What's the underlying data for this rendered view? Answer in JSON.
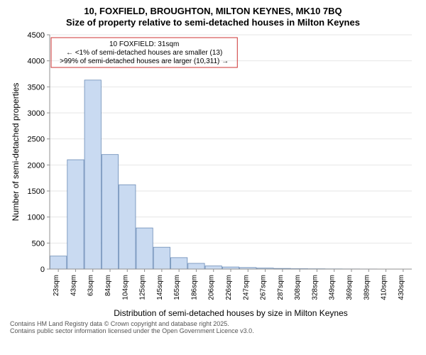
{
  "title": {
    "line1": "10, FOXFIELD, BROUGHTON, MILTON KEYNES, MK10 7BQ",
    "line2": "Size of property relative to semi-detached houses in Milton Keynes"
  },
  "chart": {
    "type": "histogram",
    "bar_fill": "#c9daf1",
    "bar_stroke": "#6a8bb6",
    "background_color": "#ffffff",
    "grid_color": "#e6e6e6",
    "axis_color": "#909090",
    "ylim": [
      0,
      4500
    ],
    "ytick_step": 500,
    "yticks": [
      0,
      500,
      1000,
      1500,
      2000,
      2500,
      3000,
      3500,
      4000,
      4500
    ],
    "ylabel": "Number of semi-detached properties",
    "xlabel": "Distribution of semi-detached houses by size in Milton Keynes",
    "categories": [
      "23sqm",
      "43sqm",
      "63sqm",
      "84sqm",
      "104sqm",
      "125sqm",
      "145sqm",
      "165sqm",
      "186sqm",
      "206sqm",
      "226sqm",
      "247sqm",
      "267sqm",
      "287sqm",
      "308sqm",
      "328sqm",
      "349sqm",
      "369sqm",
      "389sqm",
      "410sqm",
      "430sqm"
    ],
    "values": [
      250,
      2100,
      3630,
      2200,
      1620,
      790,
      420,
      220,
      110,
      60,
      40,
      30,
      20,
      12,
      8,
      6,
      4,
      3,
      2,
      1,
      1
    ],
    "annotation": {
      "box_stroke": "#c33",
      "line1": "10 FOXFIELD: 31sqm",
      "line2": "← <1% of semi-detached houses are smaller (13)",
      "line3": ">99% of semi-detached houses are larger (10,311) →"
    }
  },
  "footer": {
    "line1": "Contains HM Land Registry data © Crown copyright and database right 2025.",
    "line2": "Contains public sector information licensed under the Open Government Licence v3.0."
  }
}
